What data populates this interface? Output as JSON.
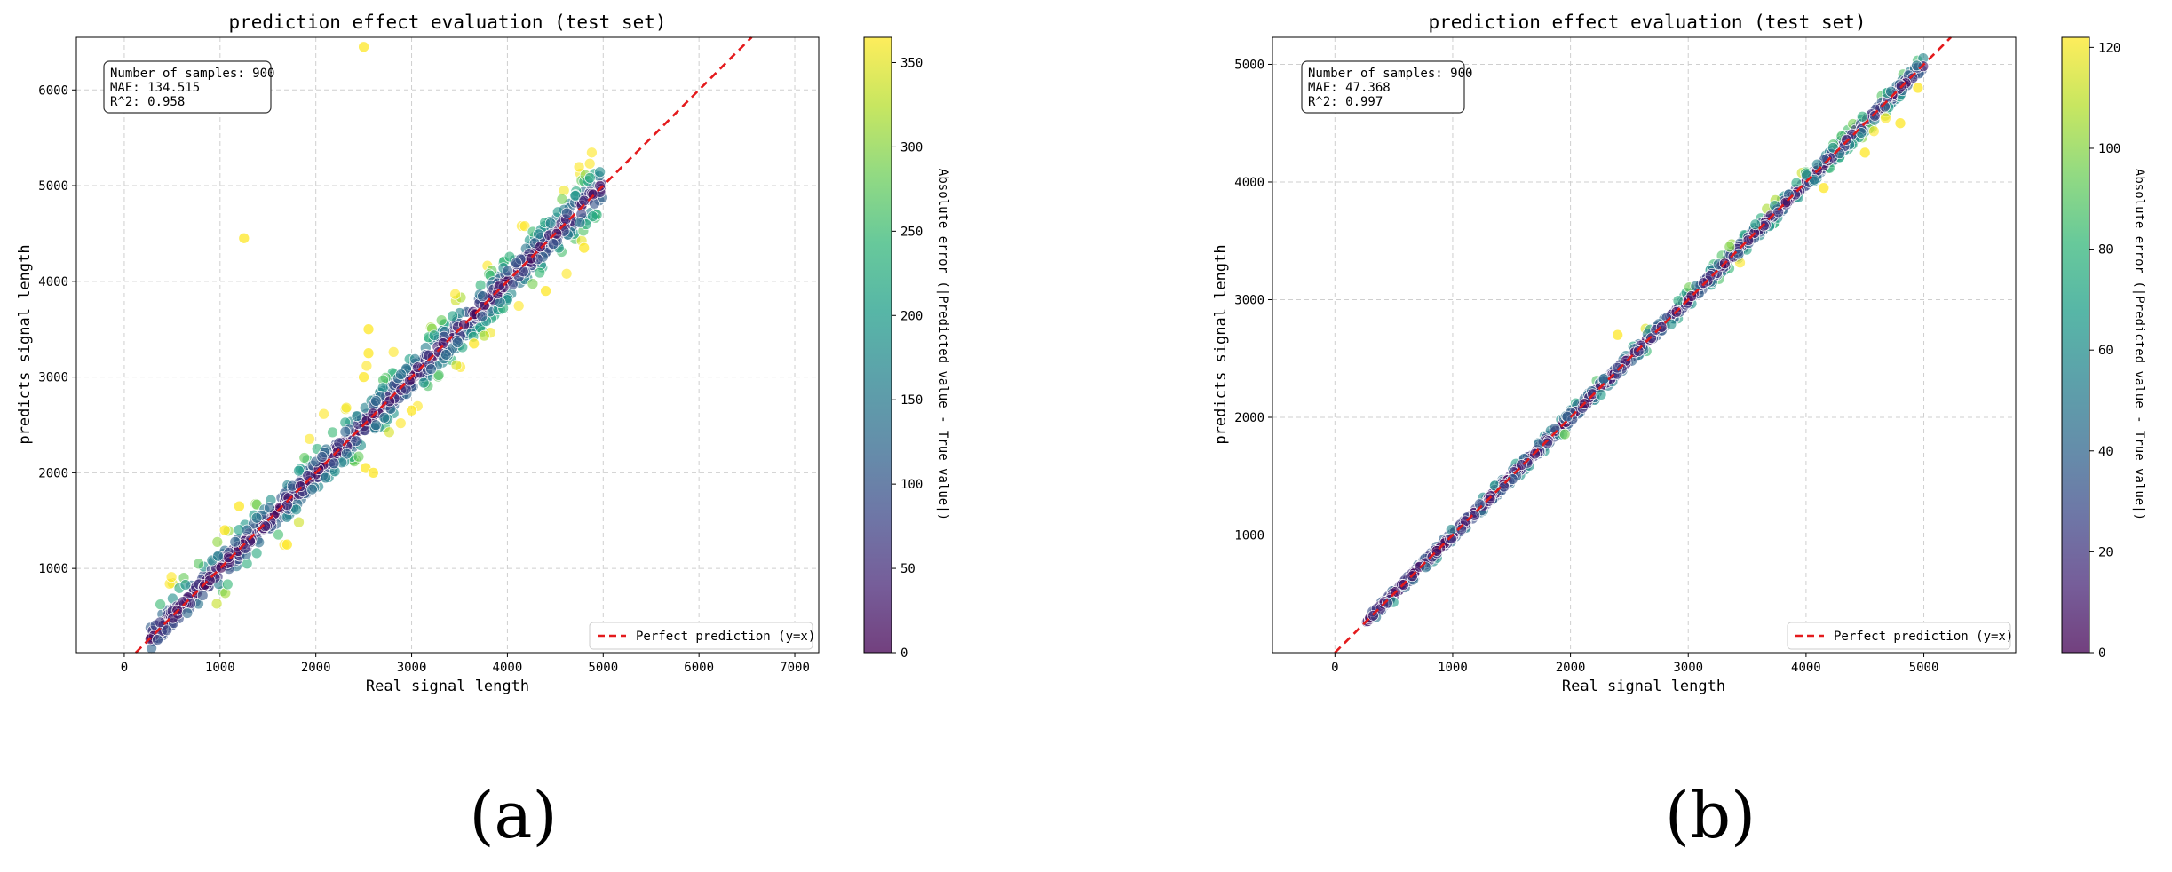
{
  "colors": {
    "viridis": [
      "#440154",
      "#482878",
      "#3e4989",
      "#31688e",
      "#26828e",
      "#1f9e89",
      "#35b779",
      "#6ece58",
      "#b5de2b",
      "#fde725"
    ],
    "reference_line": "#e41a1c",
    "grid": "#cfcfcf"
  },
  "chart_data": [
    {
      "type": "scatter",
      "panel_label": "(a)",
      "title": "prediction effect evaluation (test set)",
      "xlabel": "Real signal length",
      "ylabel": "predicts signal length",
      "xlim": [
        -500,
        7250
      ],
      "ylim": [
        120,
        6550
      ],
      "xticks": [
        0,
        1000,
        2000,
        3000,
        4000,
        5000,
        6000,
        7000
      ],
      "yticks": [
        1000,
        2000,
        3000,
        4000,
        5000,
        6000
      ],
      "grid": true,
      "colorbar": {
        "label": "Absolute error (|Predicted value - True value|)",
        "range": [
          0,
          365
        ],
        "ticks": [
          0,
          50,
          100,
          150,
          200,
          250,
          300,
          350
        ]
      },
      "stats": [
        "Number of samples: 900",
        "MAE: 134.515",
        "R^2: 0.958"
      ],
      "stats_position": "top-left",
      "legend": {
        "label": "Perfect prediction (y=x)",
        "position": "bottom-right"
      },
      "n_points": 900,
      "notable_points": [
        {
          "x": 2500,
          "y": 6450,
          "err": 365
        },
        {
          "x": 1250,
          "y": 4450,
          "err": 365
        },
        {
          "x": 2550,
          "y": 3500,
          "err": 365
        },
        {
          "x": 2550,
          "y": 3250,
          "err": 365
        },
        {
          "x": 2500,
          "y": 3000,
          "err": 365
        },
        {
          "x": 2520,
          "y": 2050,
          "err": 365
        },
        {
          "x": 2600,
          "y": 2000,
          "err": 365
        },
        {
          "x": 1050,
          "y": 1400,
          "err": 365
        },
        {
          "x": 1200,
          "y": 1650,
          "err": 365
        },
        {
          "x": 1700,
          "y": 1250,
          "err": 365
        },
        {
          "x": 4400,
          "y": 3900,
          "err": 365
        },
        {
          "x": 4800,
          "y": 4350,
          "err": 365
        },
        {
          "x": 3650,
          "y": 3350,
          "err": 365
        },
        {
          "x": 3000,
          "y": 2650,
          "err": 365
        }
      ]
    },
    {
      "type": "scatter",
      "panel_label": "(b)",
      "title": "prediction effect evaluation (test set)",
      "xlabel": "Real signal length",
      "ylabel": "predicts signal length",
      "xlim": [
        -530,
        5780
      ],
      "ylim": [
        0,
        5230
      ],
      "xticks": [
        0,
        1000,
        2000,
        3000,
        4000,
        5000
      ],
      "yticks": [
        1000,
        2000,
        3000,
        4000,
        5000
      ],
      "grid": true,
      "colorbar": {
        "label": "Absolute error (|Predicted value - True value|)",
        "range": [
          0,
          122
        ],
        "ticks": [
          0,
          20,
          40,
          60,
          80,
          100,
          120
        ]
      },
      "stats": [
        "Number of samples: 900",
        "MAE: 47.368",
        "R^2: 0.997"
      ],
      "stats_position": "top-left",
      "legend": {
        "label": "Perfect prediction (y=x)",
        "position": "bottom-right"
      },
      "n_points": 900,
      "notable_points": [
        {
          "x": 4950,
          "y": 4800,
          "err": 122
        },
        {
          "x": 4800,
          "y": 4500,
          "err": 122
        },
        {
          "x": 4500,
          "y": 4250,
          "err": 122
        },
        {
          "x": 4150,
          "y": 3950,
          "err": 122
        },
        {
          "x": 2400,
          "y": 2700,
          "err": 122
        }
      ]
    }
  ]
}
